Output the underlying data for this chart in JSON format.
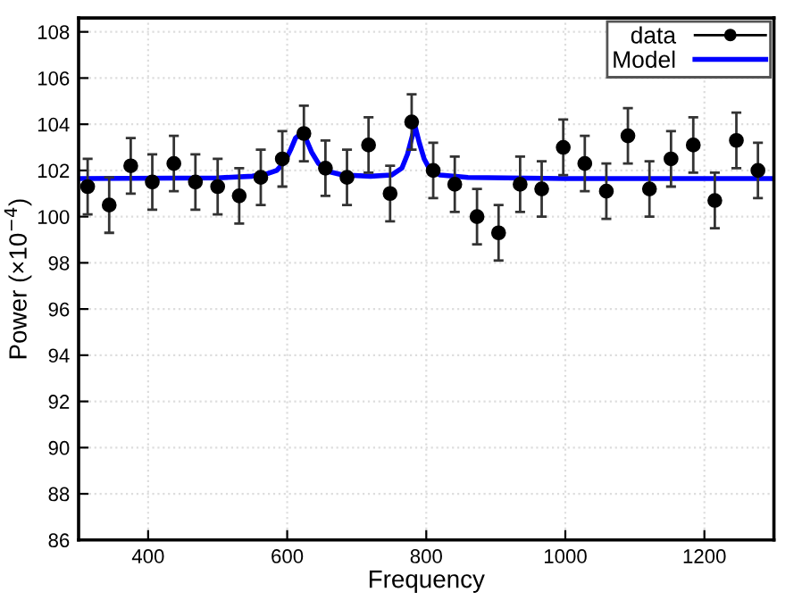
{
  "chart_data": {
    "type": "scatter",
    "xlabel": "Frequency",
    "ylabel": "Power (×10$^{−4}$)",
    "xlim": [
      300,
      1300
    ],
    "ylim": [
      86,
      108.6
    ],
    "xticks": [
      400,
      600,
      800,
      1000,
      1200
    ],
    "yticks": [
      86,
      88,
      90,
      92,
      94,
      96,
      98,
      100,
      102,
      104,
      106,
      108
    ],
    "grid": true,
    "legend": "top right",
    "series": [
      {
        "name": "data",
        "color": "#000000",
        "marker": "circle",
        "x": [
          313,
          344,
          375,
          406,
          437,
          468,
          500,
          531,
          562,
          593,
          624,
          655,
          686,
          717,
          748,
          779,
          810,
          841,
          873,
          904,
          935,
          966,
          997,
          1028,
          1059,
          1090,
          1121,
          1152,
          1184,
          1215,
          1246,
          1277
        ],
        "values": [
          101.3,
          100.5,
          102.2,
          101.5,
          102.3,
          101.5,
          101.3,
          100.9,
          101.7,
          102.5,
          103.6,
          102.1,
          101.7,
          103.1,
          101.0,
          104.1,
          102.0,
          101.4,
          100.0,
          99.3,
          101.4,
          101.2,
          103.0,
          102.3,
          101.1,
          103.5,
          101.2,
          102.5,
          103.1,
          100.7,
          103.3,
          102.0
        ],
        "errors": [
          1.2,
          1.2,
          1.2,
          1.2,
          1.2,
          1.2,
          1.2,
          1.2,
          1.2,
          1.2,
          1.2,
          1.2,
          1.2,
          1.2,
          1.2,
          1.2,
          1.2,
          1.2,
          1.2,
          1.2,
          1.2,
          1.2,
          1.2,
          1.2,
          1.2,
          1.2,
          1.2,
          1.2,
          1.2,
          1.2,
          1.2,
          1.2
        ]
      },
      {
        "name": "Model",
        "type": "line",
        "color": "#0000ff",
        "marker": "none",
        "line_style": "solid",
        "x": [
          300,
          500,
          550,
          570,
          585,
          597,
          605,
          612,
          620,
          628,
          635,
          645,
          660,
          680,
          720,
          750,
          765,
          773,
          780,
          784,
          790,
          797,
          805,
          820,
          860,
          1000,
          1300
        ],
        "values": [
          101.65,
          101.68,
          101.75,
          101.85,
          102.0,
          102.4,
          102.9,
          103.4,
          103.6,
          103.3,
          102.8,
          102.3,
          101.95,
          101.8,
          101.75,
          101.8,
          102.1,
          102.7,
          103.5,
          103.9,
          103.2,
          102.5,
          102.05,
          101.8,
          101.7,
          101.65,
          101.65
        ]
      }
    ]
  }
}
